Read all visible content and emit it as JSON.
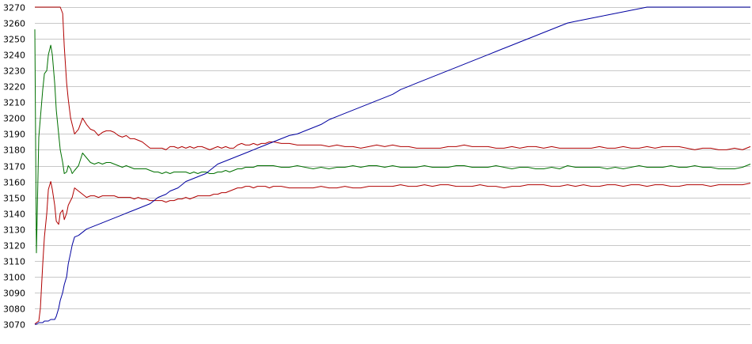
{
  "chart_data": {
    "type": "line",
    "title": "",
    "xlabel": "",
    "ylabel": "",
    "ylim": [
      3070,
      3270
    ],
    "yticks": [
      3270,
      3260,
      3250,
      3240,
      3230,
      3220,
      3210,
      3200,
      3190,
      3180,
      3170,
      3160,
      3150,
      3140,
      3130,
      3120,
      3110,
      3100,
      3090,
      3080,
      3070
    ],
    "grid": true,
    "legend": "none",
    "x": [
      0,
      2,
      5,
      7,
      10,
      12,
      15,
      17,
      20,
      22,
      25,
      27,
      30,
      32,
      35,
      37,
      40,
      42,
      45,
      47,
      50,
      55,
      60,
      65,
      70,
      75,
      80,
      85,
      90,
      95,
      100,
      105,
      110,
      115,
      120,
      125,
      130,
      135,
      140,
      145,
      150,
      155,
      160,
      165,
      170,
      175,
      180,
      185,
      190,
      195,
      200,
      205,
      210,
      215,
      220,
      225,
      230,
      235,
      240,
      245,
      250,
      255,
      260,
      265,
      270,
      275,
      280,
      285,
      290,
      295,
      300,
      310,
      320,
      330,
      340,
      350,
      360,
      370,
      380,
      390,
      400,
      410,
      420,
      430,
      440,
      450,
      460,
      470,
      480,
      490,
      500,
      510,
      520,
      530,
      540,
      550,
      560,
      570,
      580,
      590,
      600,
      610,
      620,
      630,
      640,
      650,
      660,
      670,
      680,
      690,
      700,
      710,
      720,
      730,
      740,
      750,
      760,
      770,
      780,
      790,
      800,
      810,
      820,
      830,
      840,
      850,
      860,
      870,
      880,
      890,
      900
    ],
    "series": [
      {
        "color": "#b00000",
        "values": [
          3270,
          3270,
          3270,
          3270,
          3270,
          3270,
          3270,
          3270,
          3270,
          3270,
          3270,
          3270,
          3270,
          3270,
          3266,
          3245,
          3222,
          3212,
          3200,
          3196,
          3190,
          3193,
          3200,
          3196,
          3193,
          3192,
          3189,
          3191,
          3192,
          3192,
          3191,
          3189,
          3188,
          3189,
          3187,
          3187,
          3186,
          3185,
          3183,
          3181,
          3181,
          3181,
          3181,
          3180,
          3182,
          3182,
          3181,
          3182,
          3181,
          3182,
          3181,
          3182,
          3182,
          3181,
          3180,
          3181,
          3182,
          3181,
          3182,
          3181,
          3181,
          3183,
          3184,
          3183,
          3183,
          3184,
          3183,
          3184,
          3184,
          3185,
          3185,
          3184,
          3184,
          3183,
          3183,
          3183,
          3183,
          3182,
          3183,
          3182,
          3182,
          3181,
          3182,
          3183,
          3182,
          3183,
          3182,
          3182,
          3181,
          3181,
          3181,
          3181,
          3182,
          3182,
          3183,
          3182,
          3182,
          3182,
          3181,
          3181,
          3182,
          3181,
          3182,
          3182,
          3181,
          3182,
          3181,
          3181,
          3181,
          3181,
          3181,
          3182,
          3181,
          3181,
          3182,
          3181,
          3181,
          3182,
          3181,
          3182,
          3182,
          3182,
          3181,
          3180,
          3181,
          3181,
          3180,
          3180,
          3181,
          3180,
          3182
        ]
      },
      {
        "color": "#007000",
        "values": [
          3256,
          3115,
          3188,
          3200,
          3218,
          3228,
          3230,
          3240,
          3246,
          3240,
          3222,
          3205,
          3190,
          3180,
          3172,
          3165,
          3166,
          3170,
          3168,
          3165,
          3167,
          3170,
          3178,
          3175,
          3172,
          3171,
          3172,
          3171,
          3172,
          3172,
          3171,
          3170,
          3169,
          3170,
          3169,
          3168,
          3168,
          3168,
          3168,
          3167,
          3166,
          3166,
          3165,
          3166,
          3165,
          3166,
          3166,
          3166,
          3166,
          3165,
          3166,
          3165,
          3166,
          3166,
          3165,
          3165,
          3166,
          3166,
          3167,
          3166,
          3167,
          3168,
          3168,
          3169,
          3169,
          3169,
          3170,
          3170,
          3170,
          3170,
          3170,
          3169,
          3169,
          3170,
          3169,
          3168,
          3169,
          3168,
          3169,
          3169,
          3170,
          3169,
          3170,
          3170,
          3169,
          3170,
          3169,
          3169,
          3169,
          3170,
          3169,
          3169,
          3169,
          3170,
          3170,
          3169,
          3169,
          3169,
          3170,
          3169,
          3168,
          3169,
          3169,
          3168,
          3168,
          3169,
          3168,
          3170,
          3169,
          3169,
          3169,
          3169,
          3168,
          3169,
          3168,
          3169,
          3170,
          3169,
          3169,
          3169,
          3170,
          3169,
          3169,
          3170,
          3169,
          3169,
          3168,
          3168,
          3168,
          3169,
          3171
        ]
      },
      {
        "color": "#b00000",
        "values": [
          3070,
          3071,
          3072,
          3080,
          3108,
          3125,
          3140,
          3155,
          3160,
          3155,
          3145,
          3135,
          3133,
          3140,
          3142,
          3136,
          3140,
          3145,
          3148,
          3150,
          3156,
          3154,
          3152,
          3150,
          3151,
          3151,
          3150,
          3151,
          3151,
          3151,
          3151,
          3150,
          3150,
          3150,
          3150,
          3149,
          3150,
          3149,
          3149,
          3148,
          3148,
          3148,
          3148,
          3147,
          3148,
          3148,
          3149,
          3149,
          3150,
          3149,
          3150,
          3151,
          3151,
          3151,
          3151,
          3152,
          3152,
          3153,
          3153,
          3154,
          3155,
          3156,
          3156,
          3157,
          3157,
          3156,
          3157,
          3157,
          3157,
          3156,
          3157,
          3157,
          3156,
          3156,
          3156,
          3156,
          3157,
          3156,
          3156,
          3157,
          3156,
          3156,
          3157,
          3157,
          3157,
          3157,
          3158,
          3157,
          3157,
          3158,
          3157,
          3158,
          3158,
          3157,
          3157,
          3157,
          3158,
          3157,
          3157,
          3156,
          3157,
          3157,
          3158,
          3158,
          3158,
          3157,
          3157,
          3158,
          3157,
          3158,
          3157,
          3157,
          3158,
          3158,
          3157,
          3158,
          3158,
          3157,
          3158,
          3158,
          3157,
          3157,
          3158,
          3158,
          3158,
          3157,
          3158,
          3158,
          3158,
          3158,
          3159
        ]
      },
      {
        "color": "#0000a0",
        "values": [
          3070,
          3070,
          3071,
          3071,
          3071,
          3072,
          3072,
          3072,
          3073,
          3073,
          3073,
          3075,
          3080,
          3085,
          3090,
          3095,
          3100,
          3108,
          3115,
          3120,
          3125,
          3126,
          3128,
          3130,
          3131,
          3132,
          3133,
          3134,
          3135,
          3136,
          3137,
          3138,
          3139,
          3140,
          3141,
          3142,
          3143,
          3144,
          3145,
          3146,
          3148,
          3150,
          3151,
          3152,
          3154,
          3155,
          3156,
          3158,
          3160,
          3161,
          3162,
          3163,
          3164,
          3165,
          3167,
          3169,
          3171,
          3172,
          3173,
          3174,
          3175,
          3176,
          3177,
          3178,
          3179,
          3180,
          3181,
          3182,
          3183,
          3184,
          3185,
          3187,
          3189,
          3190,
          3192,
          3194,
          3196,
          3199,
          3201,
          3203,
          3205,
          3207,
          3209,
          3211,
          3213,
          3215,
          3218,
          3220,
          3222,
          3224,
          3226,
          3228,
          3230,
          3232,
          3234,
          3236,
          3238,
          3240,
          3242,
          3244,
          3246,
          3248,
          3250,
          3252,
          3254,
          3256,
          3258,
          3260,
          3261,
          3262,
          3263,
          3264,
          3265,
          3266,
          3267,
          3268,
          3269,
          3270,
          3270,
          3270,
          3270,
          3270,
          3270,
          3270,
          3270,
          3270,
          3270,
          3270,
          3270,
          3270,
          3270
        ]
      }
    ]
  }
}
